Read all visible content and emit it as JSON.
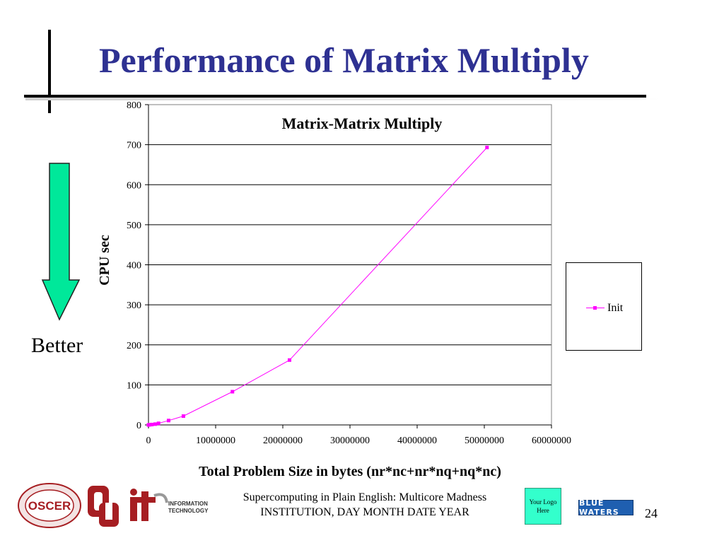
{
  "slide": {
    "title": "Performance of Matrix Multiply",
    "better_label": "Better",
    "page_number": "24",
    "colors": {
      "title": "#2e3192",
      "arrow": "#00e89a",
      "series": "#ff00ff"
    }
  },
  "footer": {
    "line1": "Supercomputing in Plain English: Multicore Madness",
    "line2": "INSTITUTION, DAY MONTH DATE YEAR",
    "your_logo": "Your Logo Here",
    "logo_oscer": "OSCER",
    "logo_blue_waters": "BLUE WATERS",
    "logo_it_line1": "INFORMATION",
    "logo_it_line2": "TECHNOLOGY"
  },
  "chart_data": {
    "type": "scatter",
    "title": "Matrix-Matrix Multiply",
    "xlabel": "Total Problem Size in bytes (nr*nc+nr*nq+nq*nc)",
    "ylabel": "CPU sec",
    "xlim": [
      0,
      60000000
    ],
    "ylim": [
      0,
      800
    ],
    "x_ticks": [
      "0",
      "10000000",
      "20000000",
      "30000000",
      "40000000",
      "50000000",
      "60000000"
    ],
    "y_ticks": [
      "0",
      "100",
      "200",
      "300",
      "400",
      "500",
      "600",
      "700",
      "800"
    ],
    "grid": "horizontal",
    "legend_position": "right",
    "series": [
      {
        "name": "Init",
        "color": "#ff00ff",
        "x": [
          0,
          200000,
          500000,
          1000000,
          1500000,
          3000000,
          5200000,
          12500000,
          21000000,
          50400000
        ],
        "y": [
          0,
          0.5,
          1,
          2,
          4,
          11,
          22,
          83,
          162,
          693
        ]
      }
    ]
  }
}
